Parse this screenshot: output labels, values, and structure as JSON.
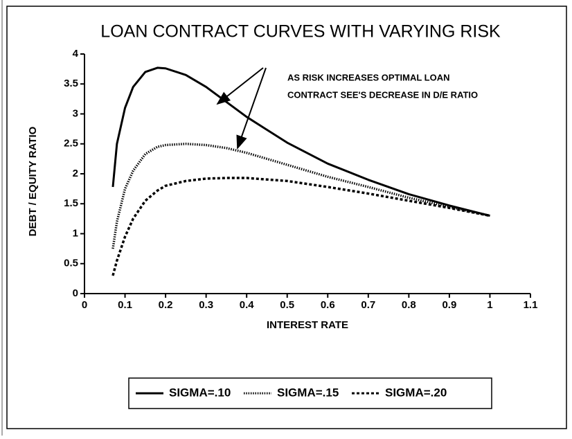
{
  "chart_data": {
    "type": "line",
    "title": "LOAN CONTRACT CURVES WITH VARYING RISK",
    "x_label": "INTEREST RATE",
    "y_label": "DEBT / EQUITY RATIO",
    "annotations": [
      "AS RISK INCREASES OPTIMAL LOAN",
      "CONTRACT SEE'S DECREASE IN D/E RATIO"
    ],
    "x": [
      0.07,
      0.08,
      0.1,
      0.12,
      0.15,
      0.18,
      0.2,
      0.25,
      0.3,
      0.35,
      0.4,
      0.5,
      0.6,
      0.7,
      0.8,
      0.9,
      1.0
    ],
    "series": [
      {
        "name": "SIGMA=.10",
        "color": "#000000",
        "line_style": "solid",
        "values": [
          1.78,
          2.5,
          3.1,
          3.45,
          3.7,
          3.77,
          3.76,
          3.65,
          3.45,
          3.2,
          2.95,
          2.52,
          2.17,
          1.9,
          1.66,
          1.47,
          1.3
        ]
      },
      {
        "name": "SIGMA=.15",
        "color": "#000000",
        "line_style": "dotted",
        "values": [
          0.75,
          1.2,
          1.75,
          2.05,
          2.33,
          2.45,
          2.48,
          2.5,
          2.48,
          2.43,
          2.35,
          2.15,
          1.95,
          1.78,
          1.6,
          1.45,
          1.3
        ]
      },
      {
        "name": "SIGMA=.20",
        "color": "#000000",
        "line_style": "dashed",
        "values": [
          0.3,
          0.55,
          0.95,
          1.25,
          1.55,
          1.72,
          1.8,
          1.88,
          1.92,
          1.93,
          1.93,
          1.88,
          1.78,
          1.67,
          1.55,
          1.43,
          1.3
        ]
      }
    ],
    "xlim": [
      0,
      1.1
    ],
    "xticks": [
      0,
      0.1,
      0.2,
      0.3,
      0.4,
      0.5,
      0.6,
      0.7,
      0.8,
      0.9,
      1,
      1.1
    ],
    "ylim": [
      0,
      4
    ],
    "yticks": [
      0,
      0.5,
      1,
      1.5,
      2,
      2.5,
      3,
      3.5,
      4
    ],
    "grid": false,
    "legend": "bottom"
  }
}
